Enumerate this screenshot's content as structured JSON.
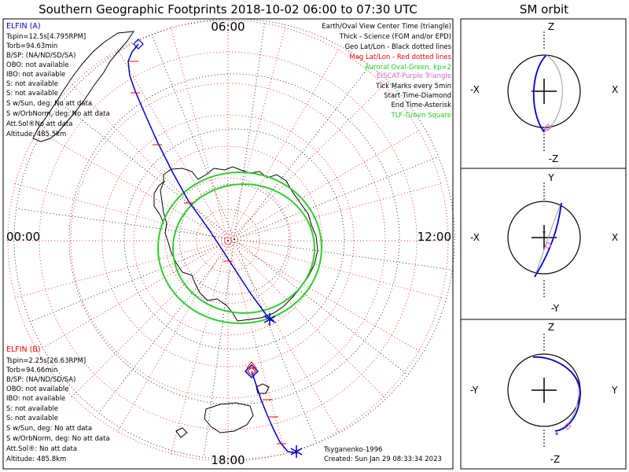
{
  "title": "Southern Geographic Footprints 2018-10-02 06:00 to 07:30 UTC",
  "orbit_title": "SM orbit",
  "clock_labels": {
    "top": "06:00",
    "left": "00:00",
    "right": "12:00",
    "bottom": "18:00"
  },
  "elfin_a": {
    "title": "ELFIN (A)",
    "color": "#0000cc",
    "lines": [
      "Tspin=12.5s[4.795RPM]",
      "Torb=94.63min",
      "B/SP: (NA/ND/SD/SA)",
      "OBO: not available",
      "IBO: not available",
      "S: not available",
      "S: not available",
      "S w/Sun, deg: No att data",
      "S w/OrbNorm, deg: No att data",
      "Att.Sol®No att data",
      "Altitude: 485.5km"
    ]
  },
  "elfin_b": {
    "title": "ELFIN (B)",
    "color": "#ff0000",
    "lines": [
      "Tspin=2.25s[26.63RPM]",
      "Torb=94.66min",
      "B/SP: (NA/ND/SD/SA)",
      "OBO: not available",
      "IBO: not available",
      "S: not available",
      "S: not available",
      "S w/Sun, deg: No att data",
      "S w/OrbNorm, deg: No att data",
      "Att.Sol®: No att data",
      "Altitude: 485.8km"
    ]
  },
  "legend": [
    {
      "text": "Earth/Oval View Center Time (triangle)",
      "color": "#000000"
    },
    {
      "text": "Thick - Science (FGM and/or EPD)",
      "color": "#000000"
    },
    {
      "text": "Geo Lat/Lon - Black dotted lines",
      "color": "#000000"
    },
    {
      "text": "Mag Lat/Lon - Red dotted lines",
      "color": "#ff0000"
    },
    {
      "text": "Auroral Oval-Green, kp=2",
      "color": "#22cc22"
    },
    {
      "text": "EISCAT-Purple Triangle",
      "color": "#cc66cc"
    },
    {
      "text": "Tick Marks every 5min",
      "color": "#000000"
    },
    {
      "text": "Start Time-Diamond",
      "color": "#000000"
    },
    {
      "text": "End Time-Asterisk",
      "color": "#000000"
    },
    {
      "text": "TLF-Green Square",
      "color": "#22cc22"
    }
  ],
  "footer": {
    "credit": "Tsyganenko-1996",
    "created": "Created: Sun Jan 29 08:33:34 2023"
  },
  "orbit_panels": [
    {
      "top": "Z",
      "bottom": "-Z",
      "left": "-X",
      "right": "X"
    },
    {
      "top": "Y",
      "bottom": "-Y",
      "left": "-X",
      "right": "X"
    },
    {
      "top": "Z",
      "bottom": "-Z",
      "left": "-Y",
      "right": "Y"
    }
  ]
}
